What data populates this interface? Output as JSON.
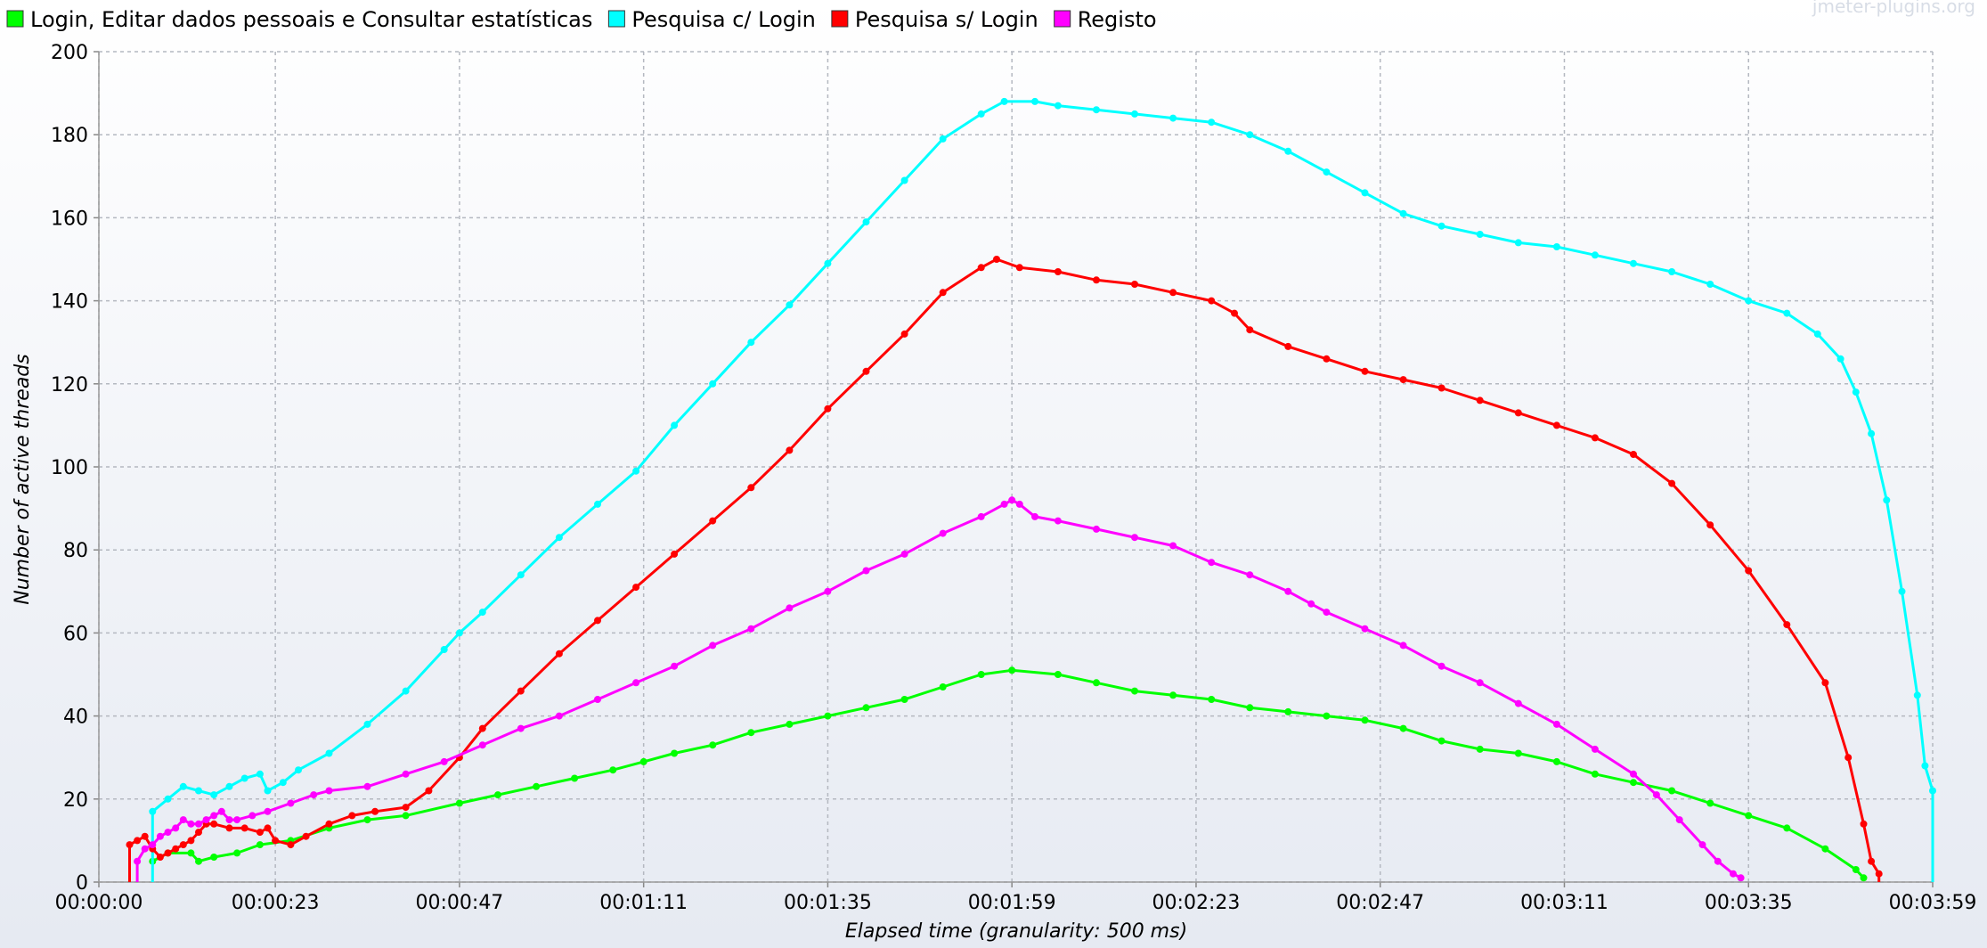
{
  "chart_data": {
    "type": "line",
    "watermark": "jmeter-plugins.org",
    "xlabel": "Elapsed time (granularity: 500 ms)",
    "ylabel": "Number of active threads",
    "xlim_seconds": [
      0,
      239
    ],
    "ylim": [
      0,
      200
    ],
    "grid": true,
    "legend_position": "top-left",
    "x_ticks": [
      {
        "s": 0,
        "label": "00:00:00"
      },
      {
        "s": 23,
        "label": "00:00:23"
      },
      {
        "s": 47,
        "label": "00:00:47"
      },
      {
        "s": 71,
        "label": "00:01:11"
      },
      {
        "s": 95,
        "label": "00:01:35"
      },
      {
        "s": 119,
        "label": "00:01:59"
      },
      {
        "s": 143,
        "label": "00:02:23"
      },
      {
        "s": 167,
        "label": "00:02:47"
      },
      {
        "s": 191,
        "label": "00:03:11"
      },
      {
        "s": 215,
        "label": "00:03:35"
      },
      {
        "s": 239,
        "label": "00:03:59"
      }
    ],
    "y_ticks": [
      0,
      20,
      40,
      60,
      80,
      100,
      120,
      140,
      160,
      180,
      200
    ],
    "series": [
      {
        "name": "Login, Editar dados pessoais e Consultar estatísticas",
        "color": "#00ff00",
        "points": [
          [
            7,
            5
          ],
          [
            9,
            7
          ],
          [
            12,
            7
          ],
          [
            13,
            5
          ],
          [
            15,
            6
          ],
          [
            18,
            7
          ],
          [
            21,
            9
          ],
          [
            25,
            10
          ],
          [
            30,
            13
          ],
          [
            35,
            15
          ],
          [
            40,
            16
          ],
          [
            47,
            19
          ],
          [
            52,
            21
          ],
          [
            57,
            23
          ],
          [
            62,
            25
          ],
          [
            67,
            27
          ],
          [
            71,
            29
          ],
          [
            75,
            31
          ],
          [
            80,
            33
          ],
          [
            85,
            36
          ],
          [
            90,
            38
          ],
          [
            95,
            40
          ],
          [
            100,
            42
          ],
          [
            105,
            44
          ],
          [
            110,
            47
          ],
          [
            115,
            50
          ],
          [
            119,
            51
          ],
          [
            125,
            50
          ],
          [
            130,
            48
          ],
          [
            135,
            46
          ],
          [
            140,
            45
          ],
          [
            145,
            44
          ],
          [
            150,
            42
          ],
          [
            155,
            41
          ],
          [
            160,
            40
          ],
          [
            165,
            39
          ],
          [
            170,
            37
          ],
          [
            175,
            34
          ],
          [
            180,
            32
          ],
          [
            185,
            31
          ],
          [
            190,
            29
          ],
          [
            195,
            26
          ],
          [
            200,
            24
          ],
          [
            205,
            22
          ],
          [
            210,
            19
          ],
          [
            215,
            16
          ],
          [
            220,
            13
          ],
          [
            225,
            8
          ],
          [
            229,
            3
          ],
          [
            230,
            1
          ]
        ]
      },
      {
        "name": "Pesquisa c/ Login",
        "color": "#00ffff",
        "points": [
          [
            7,
            0
          ],
          [
            7,
            17
          ],
          [
            9,
            20
          ],
          [
            11,
            23
          ],
          [
            13,
            22
          ],
          [
            15,
            21
          ],
          [
            17,
            23
          ],
          [
            19,
            25
          ],
          [
            21,
            26
          ],
          [
            22,
            22
          ],
          [
            24,
            24
          ],
          [
            26,
            27
          ],
          [
            30,
            31
          ],
          [
            35,
            38
          ],
          [
            40,
            46
          ],
          [
            45,
            56
          ],
          [
            47,
            60
          ],
          [
            50,
            65
          ],
          [
            55,
            74
          ],
          [
            60,
            83
          ],
          [
            65,
            91
          ],
          [
            70,
            99
          ],
          [
            75,
            110
          ],
          [
            80,
            120
          ],
          [
            85,
            130
          ],
          [
            90,
            139
          ],
          [
            95,
            149
          ],
          [
            100,
            159
          ],
          [
            105,
            169
          ],
          [
            110,
            179
          ],
          [
            115,
            185
          ],
          [
            118,
            188
          ],
          [
            122,
            188
          ],
          [
            125,
            187
          ],
          [
            130,
            186
          ],
          [
            135,
            185
          ],
          [
            140,
            184
          ],
          [
            145,
            183
          ],
          [
            150,
            180
          ],
          [
            155,
            176
          ],
          [
            160,
            171
          ],
          [
            165,
            166
          ],
          [
            170,
            161
          ],
          [
            175,
            158
          ],
          [
            180,
            156
          ],
          [
            185,
            154
          ],
          [
            190,
            153
          ],
          [
            195,
            151
          ],
          [
            200,
            149
          ],
          [
            205,
            147
          ],
          [
            210,
            144
          ],
          [
            215,
            140
          ],
          [
            220,
            137
          ],
          [
            224,
            132
          ],
          [
            227,
            126
          ],
          [
            229,
            118
          ],
          [
            231,
            108
          ],
          [
            233,
            92
          ],
          [
            235,
            70
          ],
          [
            237,
            45
          ],
          [
            238,
            28
          ],
          [
            239,
            22
          ],
          [
            239,
            0
          ]
        ]
      },
      {
        "name": "Pesquisa s/ Login",
        "color": "#ff0000",
        "points": [
          [
            4,
            0
          ],
          [
            4,
            9
          ],
          [
            5,
            10
          ],
          [
            6,
            11
          ],
          [
            7,
            8
          ],
          [
            8,
            6
          ],
          [
            9,
            7
          ],
          [
            10,
            8
          ],
          [
            11,
            9
          ],
          [
            12,
            10
          ],
          [
            13,
            12
          ],
          [
            14,
            14
          ],
          [
            15,
            14
          ],
          [
            17,
            13
          ],
          [
            19,
            13
          ],
          [
            21,
            12
          ],
          [
            22,
            13
          ],
          [
            23,
            10
          ],
          [
            25,
            9
          ],
          [
            27,
            11
          ],
          [
            30,
            14
          ],
          [
            33,
            16
          ],
          [
            36,
            17
          ],
          [
            40,
            18
          ],
          [
            43,
            22
          ],
          [
            47,
            30
          ],
          [
            50,
            37
          ],
          [
            55,
            46
          ],
          [
            60,
            55
          ],
          [
            65,
            63
          ],
          [
            70,
            71
          ],
          [
            75,
            79
          ],
          [
            80,
            87
          ],
          [
            85,
            95
          ],
          [
            90,
            104
          ],
          [
            95,
            114
          ],
          [
            100,
            123
          ],
          [
            105,
            132
          ],
          [
            110,
            142
          ],
          [
            115,
            148
          ],
          [
            117,
            150
          ],
          [
            120,
            148
          ],
          [
            125,
            147
          ],
          [
            130,
            145
          ],
          [
            135,
            144
          ],
          [
            140,
            142
          ],
          [
            145,
            140
          ],
          [
            148,
            137
          ],
          [
            150,
            133
          ],
          [
            155,
            129
          ],
          [
            160,
            126
          ],
          [
            165,
            123
          ],
          [
            170,
            121
          ],
          [
            175,
            119
          ],
          [
            180,
            116
          ],
          [
            185,
            113
          ],
          [
            190,
            110
          ],
          [
            195,
            107
          ],
          [
            200,
            103
          ],
          [
            205,
            96
          ],
          [
            210,
            86
          ],
          [
            215,
            75
          ],
          [
            220,
            62
          ],
          [
            225,
            48
          ],
          [
            228,
            30
          ],
          [
            230,
            14
          ],
          [
            231,
            5
          ],
          [
            232,
            2
          ],
          [
            232,
            0
          ]
        ]
      },
      {
        "name": "Registo",
        "color": "#ff00ff",
        "points": [
          [
            5,
            0
          ],
          [
            5,
            5
          ],
          [
            6,
            8
          ],
          [
            7,
            9
          ],
          [
            8,
            11
          ],
          [
            9,
            12
          ],
          [
            10,
            13
          ],
          [
            11,
            15
          ],
          [
            12,
            14
          ],
          [
            13,
            14
          ],
          [
            14,
            15
          ],
          [
            15,
            16
          ],
          [
            16,
            17
          ],
          [
            17,
            15
          ],
          [
            18,
            15
          ],
          [
            20,
            16
          ],
          [
            22,
            17
          ],
          [
            25,
            19
          ],
          [
            28,
            21
          ],
          [
            30,
            22
          ],
          [
            35,
            23
          ],
          [
            40,
            26
          ],
          [
            45,
            29
          ],
          [
            50,
            33
          ],
          [
            55,
            37
          ],
          [
            60,
            40
          ],
          [
            65,
            44
          ],
          [
            70,
            48
          ],
          [
            75,
            52
          ],
          [
            80,
            57
          ],
          [
            85,
            61
          ],
          [
            90,
            66
          ],
          [
            95,
            70
          ],
          [
            100,
            75
          ],
          [
            105,
            79
          ],
          [
            110,
            84
          ],
          [
            115,
            88
          ],
          [
            118,
            91
          ],
          [
            119,
            92
          ],
          [
            120,
            91
          ],
          [
            122,
            88
          ],
          [
            125,
            87
          ],
          [
            130,
            85
          ],
          [
            135,
            83
          ],
          [
            140,
            81
          ],
          [
            145,
            77
          ],
          [
            150,
            74
          ],
          [
            155,
            70
          ],
          [
            158,
            67
          ],
          [
            160,
            65
          ],
          [
            165,
            61
          ],
          [
            170,
            57
          ],
          [
            175,
            52
          ],
          [
            180,
            48
          ],
          [
            185,
            43
          ],
          [
            190,
            38
          ],
          [
            195,
            32
          ],
          [
            200,
            26
          ],
          [
            203,
            21
          ],
          [
            206,
            15
          ],
          [
            209,
            9
          ],
          [
            211,
            5
          ],
          [
            213,
            2
          ],
          [
            214,
            1
          ]
        ]
      }
    ]
  }
}
